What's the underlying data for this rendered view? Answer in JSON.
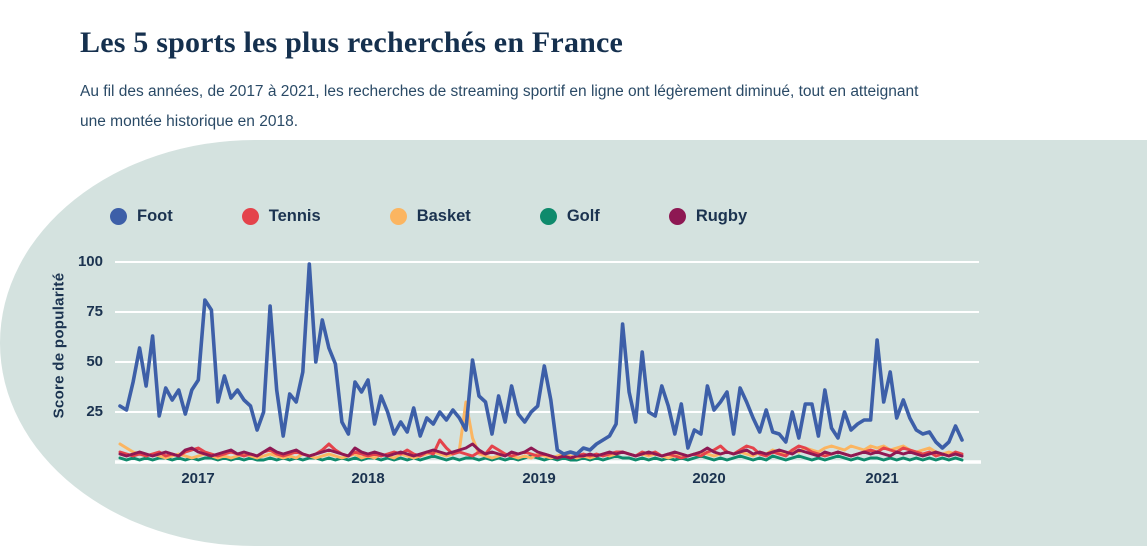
{
  "header": {
    "title": "Les 5 sports les plus recherchés en France",
    "subtitle": "Au fil des années, de 2017 à 2021, les recherches de streaming sportif en ligne ont légèrement diminué, tout en atteignant une montée historique en 2018."
  },
  "colors": {
    "panel_background": "#d4e2df",
    "title_text": "#15304e",
    "subtitle_text": "#2a4a66",
    "axis_text": "#1b3350",
    "gridline": "#ffffff",
    "foot": "#3d5fa8",
    "tennis": "#e4434b",
    "basket": "#fbb561",
    "golf": "#0e8a6c",
    "rugby": "#8e1853"
  },
  "chart_data": {
    "type": "line",
    "title": "Les 5 sports les plus recherchés en France",
    "ylabel": "Score de popularité",
    "xlabel": "",
    "ylim": [
      0,
      100
    ],
    "y_tick_labels": [
      "100",
      "75",
      "50",
      "25"
    ],
    "y_tick_values": [
      100,
      75,
      50,
      25
    ],
    "x_tick_labels": [
      "2017",
      "2018",
      "2019",
      "2020",
      "2021"
    ],
    "grid": "horizontal white lines, no vertical grid, white baseline at 0",
    "legend_position": "top",
    "x_note": "weekly popularity scores from mid-2016 to mid-2021, 130 sampled points per series",
    "series": [
      {
        "name": "Foot",
        "color": "#3d5fa8",
        "values": [
          28,
          26,
          40,
          57,
          38,
          63,
          23,
          37,
          31,
          36,
          24,
          36,
          41,
          81,
          76,
          30,
          43,
          32,
          36,
          31,
          28,
          16,
          25,
          78,
          36,
          13,
          34,
          30,
          45,
          99,
          50,
          71,
          57,
          49,
          20,
          14,
          40,
          35,
          41,
          19,
          33,
          25,
          14,
          20,
          15,
          27,
          13,
          22,
          19,
          25,
          21,
          26,
          22,
          16,
          51,
          33,
          30,
          14,
          33,
          20,
          38,
          24,
          20,
          25,
          28,
          48,
          31,
          6,
          4,
          5,
          4,
          7,
          6,
          9,
          11,
          13,
          19,
          69,
          35,
          20,
          55,
          25,
          23,
          38,
          28,
          14,
          29,
          7,
          16,
          14,
          38,
          26,
          30,
          35,
          14,
          37,
          30,
          22,
          15,
          26,
          15,
          14,
          10,
          25,
          12,
          29,
          29,
          13,
          36,
          17,
          12,
          25,
          16,
          19,
          21,
          21,
          61,
          30,
          45,
          22,
          31,
          22,
          16,
          14,
          15,
          10,
          7,
          10,
          18,
          11
        ]
      },
      {
        "name": "Tennis",
        "color": "#e4434b",
        "values": [
          5,
          4,
          3,
          4,
          3,
          4,
          5,
          3,
          4,
          3,
          5,
          6,
          7,
          5,
          4,
          3,
          4,
          5,
          4,
          3,
          4,
          3,
          5,
          6,
          4,
          3,
          4,
          5,
          4,
          3,
          4,
          6,
          9,
          6,
          4,
          3,
          5,
          4,
          3,
          4,
          3,
          4,
          5,
          4,
          6,
          4,
          3,
          5,
          4,
          11,
          7,
          4,
          5,
          4,
          3,
          5,
          4,
          8,
          6,
          4,
          3,
          4,
          5,
          4,
          3,
          4,
          3,
          2,
          3,
          2,
          3,
          4,
          3,
          4,
          3,
          4,
          5,
          5,
          4,
          3,
          5,
          4,
          5,
          3,
          4,
          3,
          2,
          3,
          4,
          3,
          5,
          6,
          8,
          5,
          4,
          6,
          8,
          7,
          4,
          3,
          5,
          4,
          3,
          6,
          8,
          7,
          5,
          4,
          3,
          4,
          5,
          4,
          3,
          4,
          5,
          6,
          5,
          7,
          6,
          5,
          7,
          6,
          5,
          4,
          5,
          3,
          4,
          3,
          5,
          4
        ]
      },
      {
        "name": "Basket",
        "color": "#fbb561",
        "values": [
          9,
          7,
          5,
          4,
          3,
          4,
          3,
          2,
          3,
          4,
          3,
          2,
          3,
          4,
          3,
          2,
          3,
          2,
          3,
          4,
          3,
          2,
          3,
          4,
          3,
          2,
          3,
          2,
          4,
          3,
          2,
          3,
          4,
          3,
          2,
          3,
          4,
          2,
          3,
          2,
          4,
          3,
          2,
          4,
          3,
          2,
          3,
          4,
          5,
          4,
          3,
          4,
          6,
          30,
          12,
          4,
          3,
          2,
          3,
          4,
          3,
          2,
          3,
          2,
          4,
          3,
          2,
          3,
          4,
          3,
          2,
          3,
          2,
          3,
          4,
          3,
          4,
          5,
          4,
          3,
          4,
          3,
          4,
          3,
          2,
          3,
          4,
          3,
          4,
          5,
          4,
          3,
          4,
          5,
          4,
          5,
          4,
          3,
          5,
          4,
          6,
          5,
          4,
          6,
          5,
          7,
          6,
          5,
          7,
          8,
          7,
          6,
          8,
          7,
          6,
          8,
          7,
          8,
          6,
          7,
          8,
          6,
          5,
          6,
          7,
          5,
          4,
          5,
          4,
          3
        ]
      },
      {
        "name": "Golf",
        "color": "#0e8a6c",
        "values": [
          2,
          1,
          2,
          1,
          2,
          1,
          2,
          2,
          1,
          2,
          1,
          2,
          1,
          2,
          2,
          1,
          2,
          1,
          2,
          1,
          2,
          1,
          1,
          2,
          1,
          2,
          1,
          2,
          1,
          2,
          2,
          1,
          2,
          1,
          2,
          1,
          2,
          1,
          2,
          2,
          1,
          2,
          1,
          2,
          1,
          2,
          1,
          2,
          3,
          2,
          1,
          2,
          1,
          2,
          2,
          1,
          2,
          1,
          2,
          1,
          2,
          1,
          2,
          3,
          2,
          1,
          2,
          1,
          2,
          1,
          1,
          2,
          1,
          2,
          1,
          2,
          3,
          2,
          2,
          1,
          2,
          1,
          2,
          1,
          2,
          1,
          2,
          1,
          2,
          3,
          2,
          1,
          2,
          1,
          2,
          3,
          2,
          1,
          2,
          1,
          3,
          2,
          1,
          2,
          3,
          2,
          1,
          2,
          1,
          2,
          3,
          2,
          1,
          2,
          1,
          2,
          2,
          1,
          2,
          1,
          2,
          1,
          2,
          1,
          2,
          1,
          2,
          1,
          2,
          1
        ]
      },
      {
        "name": "Rugby",
        "color": "#8e1853",
        "values": [
          4,
          3,
          4,
          5,
          4,
          3,
          4,
          5,
          4,
          3,
          6,
          7,
          5,
          4,
          3,
          4,
          5,
          6,
          4,
          5,
          4,
          3,
          5,
          7,
          5,
          4,
          5,
          6,
          4,
          3,
          4,
          5,
          6,
          5,
          4,
          3,
          7,
          5,
          4,
          5,
          4,
          3,
          4,
          5,
          4,
          3,
          4,
          5,
          6,
          5,
          4,
          5,
          6,
          7,
          9,
          6,
          4,
          5,
          4,
          3,
          5,
          4,
          5,
          7,
          5,
          4,
          3,
          2,
          3,
          2,
          3,
          3,
          4,
          3,
          4,
          5,
          4,
          5,
          4,
          3,
          4,
          5,
          4,
          3,
          4,
          5,
          4,
          3,
          4,
          5,
          7,
          5,
          4,
          5,
          4,
          5,
          6,
          4,
          5,
          4,
          5,
          6,
          5,
          4,
          6,
          5,
          4,
          3,
          5,
          4,
          5,
          4,
          3,
          4,
          5,
          4,
          5,
          4,
          3,
          5,
          4,
          5,
          4,
          3,
          4,
          5,
          4,
          3,
          4,
          3
        ]
      }
    ]
  }
}
